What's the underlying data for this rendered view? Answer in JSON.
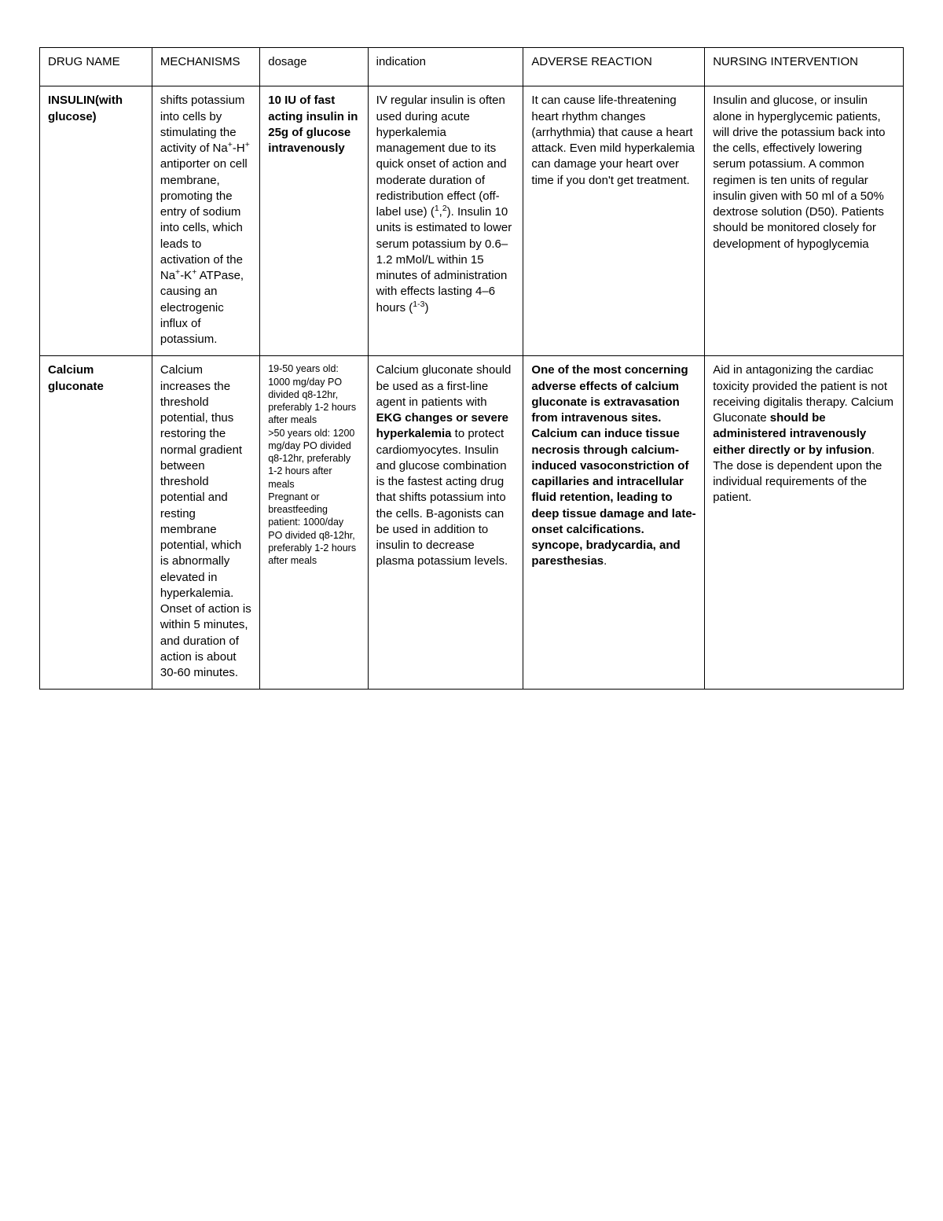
{
  "table": {
    "columns": [
      "DRUG NAME",
      "MECHANISMS",
      "dosage",
      "indication",
      "ADVERSE REACTION",
      "NURSING INTERVENTION"
    ],
    "column_widths_pct": [
      13,
      12.5,
      12.5,
      18,
      21,
      23
    ],
    "border_color": "#000000",
    "background_color": "#ffffff",
    "base_fontsize": 15,
    "small_fontsize": 12.5,
    "rows": [
      {
        "drug_name_html": "<span class='bold'>INSULIN(with glucose)</span>",
        "mechanisms_html": "shifts potassium into cells by stimulating the activity of Na<sup>+</sup>-H<sup>+</sup> antiporter on cell membrane, promoting the entry of sodium into cells, which leads to activation of the Na<sup>+</sup>-K<sup>+</sup> ATPase, causing an electrogenic influx of potassium.",
        "dosage_html": "<span class='bold'>10 IU  of fast acting insulin in 25g of glucose intravenously</span>",
        "indication_html": "IV regular insulin is often used during acute hyperkalemia management due to its quick onset of action and moderate duration of redistribution effect (off-label use) (<sup>1</sup>,<sup>2</sup>). Insulin 10 units is estimated to lower serum potassium by 0.6–1.2 mMol/L within 15 minutes of administration with effects lasting 4–6 hours (<sup>1-3</sup>)",
        "adverse_html": "It can cause life-threatening heart rhythm changes (arrhythmia) that cause a heart attack. Even mild hyperkalemia can damage your heart over time if you don't get treatment.",
        "nursing_html": "Insulin and glucose, or insulin alone in hyperglycemic patients, will drive the potassium back into the cells, effectively lowering serum potassium. A common regimen is ten units of regular insulin given with 50 ml of a 50% dextrose solution (D50). Patients should be monitored closely for development of hypoglycemia",
        "dosage_small": false
      },
      {
        "drug_name_html": "<span class='bold'>Calcium gluconate</span>",
        "mechanisms_html": "Calcium increases the threshold potential, thus restoring the normal gradient between threshold potential and resting membrane potential, which is abnormally elevated in hyperkalemia. Onset of action is within 5 minutes, and duration of action is about 30-60 minutes.",
        "dosage_html": "19-50 years old: 1000 mg/day PO divided q8-12hr, preferably 1-2 hours after meals<br>&gt;50 years old: 1200 mg/day PO divided q8-12hr, preferably 1-2 hours after meals<br>Pregnant or breastfeeding patient: 1000/day PO divided q8-12hr, preferably 1-2 hours after meals",
        "indication_html": "Calcium gluconate should be used as a first-line agent in patients with <span class='bold'>EKG changes or severe hyperkalemia</span> to protect cardiomyocytes. Insulin and glucose combination is the fastest acting drug that shifts potassium into the cells. B-agonists can be used in addition to insulin to decrease plasma potassium levels.",
        "adverse_html": "<span class='bold'>One of the most concerning adverse effects of calcium gluconate is extravasation from intravenous sites. Calcium can induce tissue necrosis through calcium-induced vasoconstriction of capillaries and intracellular fluid retention, leading to deep tissue damage and late-onset calcifications. syncope, bradycardia, and paresthesias</span>.",
        "nursing_html": " Aid in antagonizing the cardiac toxicity provided the patient is not receiving digitalis therapy. Calcium Gluconate <span class='bold'>should be administered intravenously either directly or by infusion</span>. The dose is dependent upon the individual requirements of the patient.",
        "dosage_small": true
      }
    ]
  }
}
